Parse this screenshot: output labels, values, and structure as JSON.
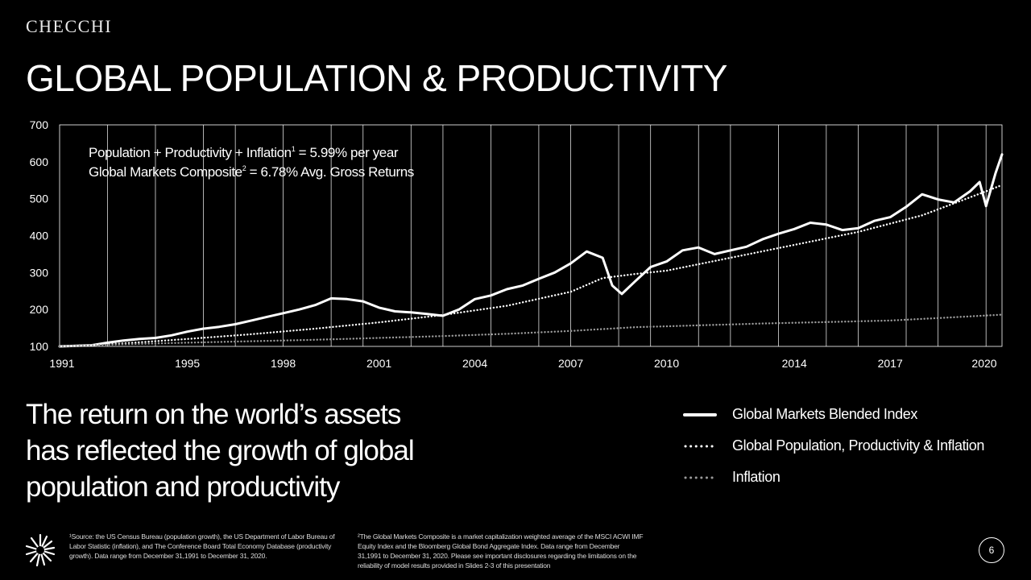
{
  "brand": "CHECCHI",
  "title": "GLOBAL POPULATION & PRODUCTIVITY",
  "annotations": {
    "line1_text": "Population + Productivity + Inflation",
    "line1_sup": "1",
    "line1_value": " = 5.99% per year",
    "line2_text": "Global Markets Composite",
    "line2_sup": "2",
    "line2_value": " = 6.78% Avg. Gross Returns"
  },
  "headline": [
    "The return on the world’s assets",
    "has reflected the growth of global",
    "population and productivity"
  ],
  "legend": [
    {
      "label": "Global Markets Blended Index",
      "style": "solid",
      "color": "#ffffff"
    },
    {
      "label": "Global Population, Productivity & Inflation",
      "style": "dotted",
      "color": "#ffffff"
    },
    {
      "label": "Inflation",
      "style": "dotted",
      "color": "#9a9a9a"
    }
  ],
  "footnotes": {
    "note1": "¹Source: the US Census Bureau (population growth), the US Department of Labor Bureau of Labor Statistic (inflation), and The Conference Board Total Economy Database (productivity growth). Data range from December 31,1991 to December 31, 2020.",
    "note2": "²The Global Markets Composite is a market capitalization weighted average of the MSCI ACWI IMF Equity Index and the Bloomberg Global Bond Aggregate Index. Data range from December 31,1991 to December 31, 2020. Please see important disclosures regarding the limitations on the reliability of model results provided in Slides 2-3 of this presentation"
  },
  "page_number": "6",
  "chart_data": {
    "type": "line",
    "xlim": [
      1991,
      2020.5
    ],
    "ylim": [
      100,
      700
    ],
    "x_ticks": [
      1991,
      1995,
      1998,
      2001,
      2004,
      2007,
      2010,
      2014,
      2017,
      2020
    ],
    "y_ticks": [
      100,
      200,
      300,
      400,
      500,
      600,
      700
    ],
    "vertical_grid_x": [
      1992.5,
      1994,
      1995.5,
      1996.5,
      1998,
      1999.5,
      2000.5,
      2002,
      2003,
      2004.5,
      2006,
      2007,
      2008.5,
      2009.5,
      2011,
      2012,
      2013.5,
      2015,
      2016,
      2017.5,
      2018.5,
      2020
    ],
    "series": [
      {
        "name": "Global Markets Blended Index",
        "style": "solid",
        "color": "#ffffff",
        "x": [
          1991,
          1992,
          1992.5,
          1993,
          1993.5,
          1994,
          1994.5,
          1995,
          1995.5,
          1996,
          1996.5,
          1997,
          1997.5,
          1998,
          1998.5,
          1999,
          1999.5,
          2000,
          2000.5,
          2001,
          2001.5,
          2002,
          2002.5,
          2003,
          2003.5,
          2004,
          2004.5,
          2005,
          2005.5,
          2006,
          2006.5,
          2007,
          2007.5,
          2008,
          2008.3,
          2008.6,
          2009,
          2009.5,
          2010,
          2010.5,
          2011,
          2011.5,
          2012,
          2012.5,
          2013,
          2013.5,
          2014,
          2014.5,
          2015,
          2015.5,
          2016,
          2016.5,
          2017,
          2017.5,
          2018,
          2018.5,
          2019,
          2019.5,
          2019.8,
          2020,
          2020.3,
          2020.5
        ],
        "y": [
          100,
          103,
          110,
          116,
          120,
          123,
          130,
          140,
          148,
          153,
          160,
          170,
          180,
          190,
          200,
          212,
          230,
          228,
          222,
          205,
          195,
          192,
          188,
          183,
          200,
          228,
          238,
          255,
          265,
          283,
          300,
          325,
          357,
          340,
          265,
          242,
          275,
          315,
          330,
          360,
          368,
          350,
          360,
          370,
          390,
          405,
          418,
          435,
          430,
          415,
          420,
          440,
          450,
          478,
          512,
          498,
          490,
          520,
          545,
          480,
          570,
          620
        ]
      },
      {
        "name": "Global Population, Productivity & Inflation",
        "style": "dotted",
        "color": "#ffffff",
        "x": [
          1991,
          1993,
          1995,
          1997,
          1999,
          2001,
          2003,
          2005,
          2007,
          2008,
          2009,
          2010,
          2012,
          2014,
          2016,
          2018,
          2020,
          2020.5
        ],
        "y": [
          100,
          108,
          120,
          133,
          148,
          165,
          185,
          210,
          248,
          285,
          296,
          305,
          340,
          375,
          410,
          455,
          520,
          537
        ]
      },
      {
        "name": "Inflation",
        "style": "dotted",
        "color": "#9a9a9a",
        "x": [
          1991,
          1993,
          1995,
          1997,
          1999,
          2001,
          2003,
          2005,
          2007,
          2009,
          2011,
          2013,
          2015,
          2017,
          2019,
          2020.5
        ],
        "y": [
          100,
          106,
          110,
          114,
          118,
          123,
          128,
          134,
          142,
          152,
          157,
          162,
          166,
          170,
          179,
          186
        ]
      }
    ]
  }
}
